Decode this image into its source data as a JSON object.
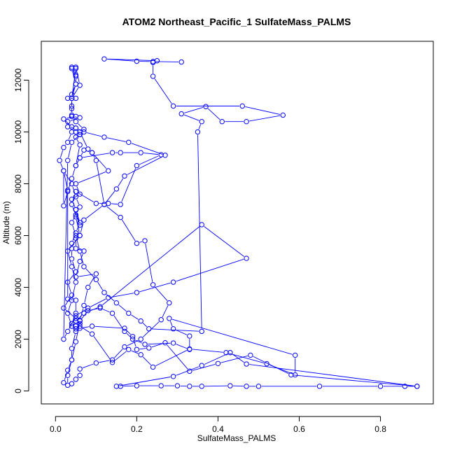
{
  "chart_data": {
    "type": "line",
    "title": "ATOM2 Northeast_Pacific_1 SulfateMass_PALMS",
    "xlabel": "SulfateMass_PALMS",
    "ylabel": "Altitude (m)",
    "xlim": [
      -0.035,
      0.93
    ],
    "ylim": [
      -500,
      13500
    ],
    "xticks": [
      0.0,
      0.2,
      0.4,
      0.6,
      0.8
    ],
    "xtick_labels": [
      "0.0",
      "0.2",
      "0.4",
      "0.6",
      "0.8"
    ],
    "yticks": [
      0,
      2000,
      4000,
      6000,
      8000,
      10000,
      12000
    ],
    "ytick_labels": [
      "0",
      "2000",
      "4000",
      "6000",
      "8000",
      "10000",
      "12000"
    ],
    "color": "#0000ff",
    "marker": "open-circle",
    "grid": false,
    "series": [
      {
        "x": [
          0.89,
          0.86,
          0.8,
          0.65,
          0.5,
          0.47,
          0.43,
          0.36,
          0.33,
          0.3,
          0.26,
          0.2,
          0.16,
          0.15,
          0.29,
          0.36,
          0.43,
          0.47,
          0.89,
          0.58,
          0.48,
          0.4,
          0.33,
          0.27,
          0.23,
          0.2,
          0.19,
          0.17,
          0.09,
          0.06,
          0.05,
          0.06,
          0.07,
          0.08,
          0.1,
          0.05,
          0.06,
          0.07,
          0.05,
          0.05,
          0.06,
          0.05,
          0.05,
          0.06,
          0.04,
          0.05,
          0.1,
          0.13,
          0.16,
          0.2,
          0.26,
          0.21,
          0.16,
          0.14,
          0.06,
          0.05,
          0.06,
          0.05,
          0.05,
          0.05,
          0.06,
          0.08,
          0.09,
          0.13,
          0.05,
          0.06,
          0.04,
          0.05,
          0.06,
          0.05,
          0.04,
          0.04,
          0.04,
          0.05,
          0.03,
          0.04,
          0.02,
          0.05,
          0.06,
          0.05,
          0.04,
          0.03,
          0.04,
          0.05,
          0.04,
          0.03,
          0.06,
          0.07,
          0.12,
          0.15,
          0.17,
          0.27,
          0.18,
          0.12,
          0.07,
          0.05,
          0.03,
          0.03,
          0.06,
          0.04,
          0.05,
          0.02,
          0.04,
          0.04,
          0.03,
          0.02,
          0.01,
          0.02,
          0.04,
          0.05,
          0.06,
          0.05,
          0.04,
          0.05,
          0.06,
          0.07,
          0.1,
          0.12,
          0.15,
          0.18,
          0.21,
          0.23,
          0.36,
          0.35,
          0.36,
          0.31,
          0.37,
          0.41,
          0.47,
          0.56,
          0.46,
          0.29,
          0.24,
          0.24,
          0.25,
          0.12,
          0.2,
          0.24,
          0.31
        ],
        "y": [
          180,
          180,
          180,
          180,
          180,
          180,
          200,
          180,
          180,
          200,
          200,
          200,
          180,
          180,
          560,
          980,
          1480,
          1040,
          180,
          620,
          1380,
          1060,
          760,
          1860,
          1660,
          1600,
          2100,
          2420,
          2500,
          2420,
          2500,
          2720,
          3300,
          4000,
          4520,
          4400,
          5000,
          5400,
          5500,
          5900,
          6000,
          6720,
          7000,
          6400,
          7200,
          7700,
          7240,
          7240,
          7200,
          8700,
          9120,
          9200,
          9200,
          9200,
          9000,
          8700,
          9500,
          9800,
          10000,
          10150,
          10000,
          9340,
          9200,
          8500,
          8000,
          7600,
          7400,
          7000,
          6500,
          6100,
          5700,
          5500,
          5100,
          4600,
          4200,
          3700,
          3200,
          2800,
          2600,
          2400,
          2500,
          3000,
          3500,
          4200,
          4800,
          5400,
          6000,
          6600,
          7200,
          7800,
          8300,
          9100,
          9600,
          9800,
          10000,
          10150,
          10200,
          10400,
          10550,
          10600,
          10600,
          10500,
          10200,
          10000,
          9600,
          9400,
          8900,
          8500,
          8000,
          7500,
          7100,
          6800,
          6500,
          6000,
          5400,
          4800,
          4300,
          3800,
          3400,
          3000,
          2700,
          2400,
          2300,
          10000,
          10400,
          10700,
          10980,
          10400,
          10400,
          10650,
          11000,
          11000,
          12150,
          12680,
          12750,
          12820,
          12730,
          12720,
          12700
        ]
      },
      {
        "x": [
          0.02,
          0.03,
          0.04,
          0.04,
          0.05,
          0.04,
          0.05,
          0.05,
          0.03,
          0.03,
          0.02,
          0.02,
          0.03,
          0.04,
          0.05,
          0.06,
          0.07,
          0.09,
          0.1,
          0.12,
          0.16,
          0.2,
          0.22,
          0.24,
          0.28,
          0.26,
          0.21,
          0.17,
          0.14,
          0.1,
          0.06,
          0.06,
          0.05,
          0.04,
          0.03,
          0.03,
          0.04,
          0.05,
          0.06,
          0.08,
          0.11,
          0.14,
          0.17,
          0.19,
          0.22,
          0.29,
          0.33,
          0.33,
          0.29,
          0.28,
          0.59,
          0.59,
          0.52,
          0.42,
          0.33,
          0.24,
          0.21,
          0.18,
          0.14,
          0.09,
          0.06,
          0.05,
          0.07,
          0.11,
          0.36,
          0.47,
          0.29,
          0.2,
          0.13,
          0.08,
          0.05,
          0.03,
          0.02,
          0.03,
          0.04,
          0.06,
          0.06,
          0.07,
          0.05,
          0.04,
          0.04,
          0.04,
          0.04,
          0.04,
          0.05,
          0.05,
          0.04,
          0.05,
          0.04,
          0.05,
          0.04,
          0.05,
          0.05,
          0.06,
          0.04,
          0.04,
          0.04,
          0.05,
          0.03,
          0.04
        ],
        "y": [
          320,
          800,
          1200,
          1640,
          2300,
          2600,
          3000,
          3500,
          3550,
          7750,
          8500,
          7150,
          7700,
          8200,
          8700,
          9000,
          9300,
          9200,
          8900,
          7200,
          6700,
          5700,
          5800,
          4100,
          3400,
          2750,
          2000,
          1700,
          1200,
          1080,
          850,
          600,
          450,
          280,
          220,
          600,
          1200,
          1900,
          2700,
          3100,
          3200,
          3000,
          2300,
          2000,
          1800,
          1850,
          1600,
          2120,
          2400,
          2800,
          1380,
          620,
          1050,
          1480,
          1620,
          920,
          1400,
          1600,
          1100,
          2200,
          2500,
          2700,
          3000,
          3250,
          6420,
          5120,
          4200,
          3800,
          3600,
          3200,
          2900,
          2300,
          2000,
          8900,
          9600,
          9900,
          9900,
          10100,
          10400,
          10600,
          10650,
          11000,
          11300,
          11450,
          11850,
          12150,
          12450,
          11850,
          11300,
          12450,
          12500,
          12200,
          12500,
          11800,
          11300,
          10900,
          11300,
          11300,
          11300,
          11300
        ]
      }
    ]
  }
}
